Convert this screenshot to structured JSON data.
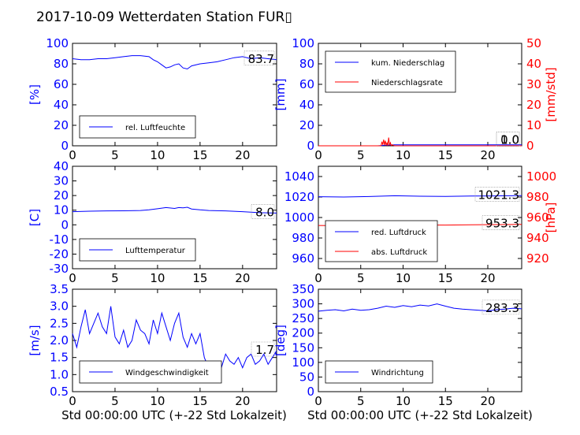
{
  "title": "2017-10-09 Wetterdaten Station FUR▯",
  "colors": {
    "primary": "#0000ff",
    "secondary": "#ff0000",
    "axis": "#000000"
  },
  "chart_data": [
    {
      "id": "humidity",
      "type": "line",
      "ylabel": "[%]",
      "xlim": [
        0,
        24
      ],
      "ylim": [
        0,
        100
      ],
      "yticks": [
        0,
        20,
        40,
        60,
        80,
        100
      ],
      "xticks": [
        0,
        5,
        10,
        15,
        20
      ],
      "last_value": "83.7",
      "series": [
        {
          "name": "rel. Luftfeuchte",
          "color": "#0000ff",
          "x": [
            0,
            1,
            2,
            3,
            4,
            5,
            6,
            7,
            8,
            9,
            9.5,
            10,
            10.5,
            11,
            11.5,
            12,
            12.5,
            13,
            13.5,
            14,
            15,
            16,
            17,
            18,
            19,
            20,
            21,
            22,
            23,
            24
          ],
          "y": [
            85,
            84,
            84,
            85,
            85,
            86,
            87,
            88,
            88,
            87,
            84,
            82,
            79,
            76,
            77,
            79,
            80,
            76,
            75,
            78,
            80,
            81,
            82,
            84,
            86,
            87,
            85,
            86,
            85,
            84
          ]
        }
      ]
    },
    {
      "id": "precip",
      "type": "line",
      "ylabel": "[mm]",
      "ylabel_right": "[mm/std]",
      "xlim": [
        0,
        24
      ],
      "ylim": [
        0,
        100
      ],
      "ylim_right": [
        0,
        50
      ],
      "yticks": [
        0,
        20,
        40,
        60,
        80,
        100
      ],
      "yticks_right": [
        0,
        10,
        20,
        30,
        40,
        50
      ],
      "xticks": [
        0,
        5,
        10,
        15,
        20
      ],
      "last_value": "1.0",
      "last_value_right": "0.0",
      "series": [
        {
          "name": "kum. Niederschlag",
          "color": "#0000ff",
          "axis": "left",
          "x": [
            0,
            7,
            7.5,
            8,
            8.5,
            9,
            24
          ],
          "y": [
            0,
            0,
            0.3,
            0.6,
            0.8,
            1.0,
            1.0
          ]
        },
        {
          "name": "Niederschlagsrate",
          "color": "#ff0000",
          "axis": "right",
          "x": [
            0,
            7.4,
            7.5,
            7.6,
            7.7,
            7.8,
            7.9,
            8.0,
            8.1,
            8.2,
            8.3,
            8.4,
            8.5,
            8.6,
            8.7,
            9.0,
            24
          ],
          "y": [
            0,
            0,
            2,
            0.5,
            3,
            0.3,
            2.5,
            0.4,
            1.5,
            0,
            4,
            0.5,
            1.5,
            0,
            0.5,
            0,
            0
          ]
        }
      ]
    },
    {
      "id": "temp",
      "type": "line",
      "ylabel": "[C]",
      "xlim": [
        0,
        24
      ],
      "ylim": [
        -30,
        40
      ],
      "yticks": [
        -30,
        -20,
        -10,
        0,
        10,
        20,
        30,
        40
      ],
      "xticks": [
        0,
        5,
        10,
        15,
        20
      ],
      "last_value": "8.0",
      "series": [
        {
          "name": "Lufttemperatur",
          "color": "#0000ff",
          "x": [
            0,
            2,
            4,
            6,
            8,
            9,
            10,
            11,
            12,
            12.5,
            13,
            13.5,
            14,
            15,
            16,
            18,
            20,
            22,
            24
          ],
          "y": [
            9,
            9.3,
            9.5,
            9.6,
            9.8,
            10.3,
            11,
            11.8,
            11.2,
            11.8,
            11.6,
            12,
            10.8,
            10.2,
            9.8,
            9.5,
            9,
            8.3,
            8
          ]
        }
      ]
    },
    {
      "id": "pressure",
      "type": "line",
      "ylabel_right": "[hPa]",
      "xlim": [
        0,
        24
      ],
      "ylim": [
        950,
        1050
      ],
      "ylim_right": [
        910,
        1010
      ],
      "yticks": [
        960,
        980,
        1000,
        1020,
        1040
      ],
      "yticks_right": [
        920,
        940,
        960,
        980,
        1000
      ],
      "xticks": [
        0,
        5,
        10,
        15,
        20
      ],
      "last_value": "1021.3",
      "last_value_right": "953.3",
      "series": [
        {
          "name": "red. Luftdruck",
          "color": "#0000ff",
          "axis": "left",
          "x": [
            0,
            3,
            6,
            9,
            12,
            15,
            18,
            21,
            24
          ],
          "y": [
            1020.3,
            1020.0,
            1020.5,
            1021.2,
            1020.8,
            1020.6,
            1020.9,
            1021.1,
            1021.3
          ]
        },
        {
          "name": "abs. Luftdruck",
          "color": "#ff0000",
          "axis": "right",
          "x": [
            0,
            3,
            6,
            9,
            12,
            15,
            18,
            21,
            24
          ],
          "y": [
            952.2,
            952.0,
            952.4,
            953.0,
            952.7,
            952.6,
            952.9,
            953.1,
            953.3
          ]
        }
      ]
    },
    {
      "id": "wind_speed",
      "type": "line",
      "ylabel": "[m/s]",
      "xlim": [
        0,
        24
      ],
      "ylim": [
        0.5,
        3.5
      ],
      "yticks": [
        0.5,
        1.0,
        1.5,
        2.0,
        2.5,
        3.0,
        3.5
      ],
      "xticks": [
        0,
        5,
        10,
        15,
        20
      ],
      "last_value": "1.7",
      "series": [
        {
          "name": "Windgeschwindigkeit",
          "color": "#0000ff",
          "x": [
            0,
            0.5,
            1,
            1.5,
            2,
            2.5,
            3,
            3.5,
            4,
            4.5,
            5,
            5.5,
            6,
            6.5,
            7,
            7.5,
            8,
            8.5,
            9,
            9.5,
            10,
            10.5,
            11,
            11.5,
            12,
            12.5,
            13,
            13.5,
            14,
            14.5,
            15,
            15.5,
            16,
            16.5,
            17,
            17.5,
            18,
            18.5,
            19,
            19.5,
            20,
            20.5,
            21,
            21.5,
            22,
            22.5,
            23,
            23.5,
            24
          ],
          "y": [
            2.2,
            1.8,
            2.4,
            2.9,
            2.2,
            2.5,
            2.8,
            2.4,
            2.2,
            3.0,
            2.1,
            1.9,
            2.3,
            1.8,
            2.0,
            2.6,
            2.3,
            2.2,
            1.9,
            2.6,
            2.2,
            2.8,
            2.4,
            2.0,
            2.5,
            2.8,
            2.1,
            1.8,
            2.2,
            1.9,
            2.2,
            1.5,
            1.2,
            1.0,
            1.3,
            1.2,
            1.6,
            1.4,
            1.3,
            1.5,
            1.2,
            1.5,
            1.6,
            1.3,
            1.4,
            1.6,
            1.3,
            1.5,
            1.7
          ]
        }
      ]
    },
    {
      "id": "wind_dir",
      "type": "line",
      "ylabel": "[deg]",
      "xlim": [
        0,
        24
      ],
      "ylim": [
        0,
        350
      ],
      "yticks": [
        0,
        50,
        100,
        150,
        200,
        250,
        300,
        350
      ],
      "xticks": [
        0,
        5,
        10,
        15,
        20
      ],
      "last_value": "283.3",
      "series": [
        {
          "name": "Windrichtung",
          "color": "#0000ff",
          "x": [
            0,
            1,
            2,
            3,
            4,
            5,
            6,
            7,
            8,
            9,
            10,
            11,
            12,
            13,
            14,
            15,
            16,
            17,
            18,
            19,
            20,
            21,
            22,
            23,
            24
          ],
          "y": [
            275,
            278,
            280,
            276,
            282,
            278,
            280,
            285,
            292,
            288,
            294,
            290,
            296,
            293,
            300,
            292,
            285,
            282,
            280,
            278,
            276,
            280,
            282,
            285,
            283
          ]
        }
      ]
    }
  ],
  "xlabel_left": "Std 00:00:00 UTC (+-22 Std Lokalzeit)",
  "xlabel_right": "Std 00:00:00 UTC (+-22 Std Lokalzeit)"
}
